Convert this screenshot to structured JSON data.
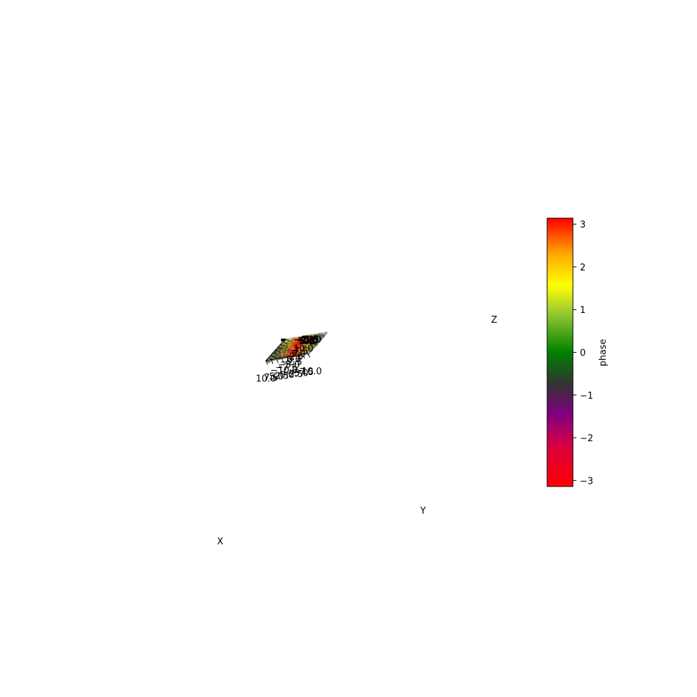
{
  "chart_data": {
    "type": "scatter",
    "projection": "3d",
    "xlabel": "X",
    "ylabel": "Y",
    "zlabel": "Z",
    "xlim": [
      -10,
      10
    ],
    "ylim": [
      -10,
      10
    ],
    "zlim": [
      -10,
      10
    ],
    "xticks": [
      "−10.0",
      "−7.5",
      "−5.0",
      "−2.5",
      "0.0",
      "2.5",
      "5.0",
      "7.5",
      "10.0"
    ],
    "yticks": [
      "−10.0",
      "−7.5",
      "−5.0",
      "−2.5",
      "0.0",
      "2.5",
      "5.0",
      "7.5",
      "10.0"
    ],
    "zticks": [
      "−10.0",
      "−7.5",
      "−5.0",
      "−2.5",
      "0.0",
      "2.5",
      "5.0",
      "7.5",
      "10.0"
    ],
    "grid": true,
    "point_count_approx": 8000,
    "color_variable": "phase",
    "colorbar": {
      "label": "phase",
      "range": [
        -3.14159,
        3.14159
      ],
      "ticks": [
        "−3",
        "−2",
        "−1",
        "0",
        "1",
        "2",
        "3"
      ],
      "tick_values": [
        -3,
        -2,
        -1,
        0,
        1,
        2,
        3
      ],
      "colormap_stops": [
        {
          "value": 0.0,
          "color": "#ff0000"
        },
        {
          "value": 0.15,
          "color": "#d90040"
        },
        {
          "value": 0.27,
          "color": "#800080"
        },
        {
          "value": 0.38,
          "color": "#333333"
        },
        {
          "value": 0.5,
          "color": "#008000"
        },
        {
          "value": 0.65,
          "color": "#9acd32"
        },
        {
          "value": 0.75,
          "color": "#ffff00"
        },
        {
          "value": 0.87,
          "color": "#ffa500"
        },
        {
          "value": 1.0,
          "color": "#ff0000"
        }
      ]
    },
    "point_alpha": 0.35,
    "view": {
      "elev": 30,
      "azim": -60
    }
  }
}
